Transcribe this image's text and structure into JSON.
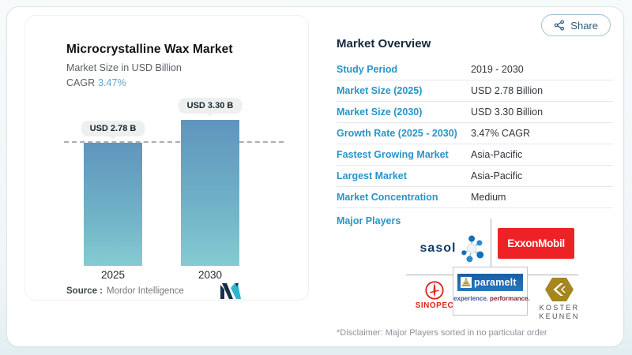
{
  "header": {
    "share_label": "Share"
  },
  "chart_panel": {
    "title": "Microcrystalline Wax Market",
    "subtitle": "Market Size in USD Billion",
    "cagr_label": "CAGR",
    "cagr_value": "3.47%",
    "source_label": "Source :",
    "source_value": "Mordor Intelligence"
  },
  "chart_data": {
    "type": "bar",
    "categories": [
      "2025",
      "2030"
    ],
    "values": [
      2.78,
      3.3
    ],
    "bar_labels": [
      "USD 2.78 B",
      "USD 3.30 B"
    ],
    "unit": "USD Billion",
    "title": "Microcrystalline Wax Market",
    "ylabel": "Market Size in USD Billion",
    "reference_line": 2.78,
    "ylim": [
      0,
      3.6
    ],
    "grid": false,
    "bar_color_top": "#5f95be",
    "bar_color_bottom": "#84cbd1"
  },
  "overview": {
    "title": "Market Overview",
    "rows": [
      {
        "label": "Study Period",
        "value": "2019 - 2030"
      },
      {
        "label": "Market Size (2025)",
        "value": "USD 2.78 Billion"
      },
      {
        "label": "Market Size (2030)",
        "value": "USD 3.30 Billion"
      },
      {
        "label": "Growth Rate (2025 - 2030)",
        "value": "3.47% CAGR"
      },
      {
        "label": "Fastest Growing Market",
        "value": "Asia-Pacific"
      },
      {
        "label": "Largest Market",
        "value": "Asia-Pacific"
      },
      {
        "label": "Market Concentration",
        "value": "Medium"
      }
    ],
    "major_players_label": "Major Players",
    "players": [
      "Sasol",
      "ExxonMobil",
      "Sinopec",
      "Paramelt",
      "Koster Keunen"
    ],
    "disclaimer": "*Disclaimer: Major Players sorted in no particular order"
  },
  "logos": {
    "sasol": "sasol",
    "exxonmobil": "ExxonMobil",
    "sinopec": "SINOPEC",
    "paramelt": "paramelt",
    "paramelt_tagline": [
      "experience.",
      "performance."
    ],
    "koster": [
      "KOSTER",
      "KEUNEN"
    ]
  },
  "colors": {
    "accent_blue": "#2795ca",
    "heading_navy": "#14293e",
    "cagr_teal": "#57a9cb",
    "exxon_red": "#ee2226",
    "sinopec_red": "#e1251b",
    "koster_gold": "#a5861f",
    "paramelt_blue": "#1f6ab3",
    "mordor_navy": "#17304a",
    "mordor_teal": "#2fb4cc",
    "bar_top": "#5f95be",
    "bar_bottom": "#84cbd1"
  }
}
